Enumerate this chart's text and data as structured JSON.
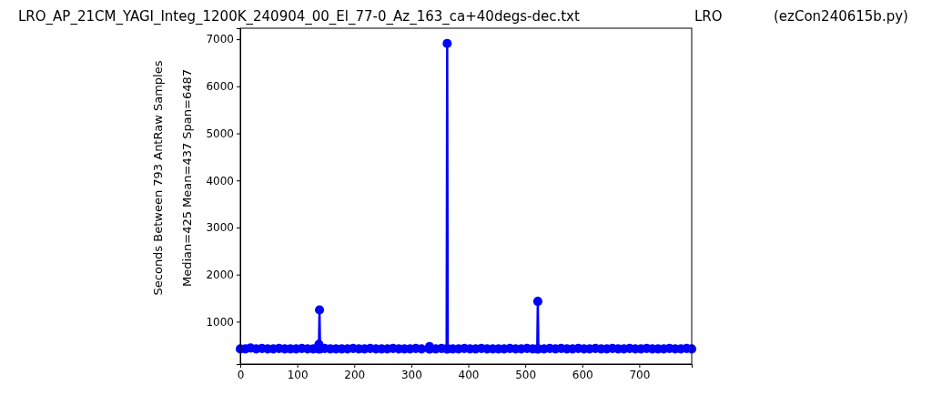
{
  "chart_data": {
    "type": "line",
    "title": "LRO_AP_21CM_YAGI_Integ_1200K_240904_00_El_77-0_Az_163_ca+40degs-dec.txt",
    "annotations": [
      "LRO",
      "(ezCon240615b.py)"
    ],
    "ylabel": "Seconds Between 793 AntRaw Samples\nMedian=425  Mean=437  Span=6487",
    "x": [
      0,
      9,
      18,
      28,
      38,
      48,
      58,
      68,
      78,
      88,
      98,
      108,
      118,
      128,
      137,
      138,
      139,
      140,
      148,
      158,
      168,
      178,
      188,
      198,
      208,
      218,
      228,
      238,
      248,
      258,
      268,
      278,
      288,
      298,
      308,
      318,
      331,
      332,
      333,
      343,
      353,
      362,
      363,
      364,
      373,
      383,
      393,
      403,
      413,
      423,
      433,
      443,
      453,
      463,
      473,
      483,
      493,
      503,
      513,
      521,
      522,
      523,
      533,
      543,
      553,
      563,
      573,
      583,
      593,
      603,
      613,
      623,
      633,
      643,
      653,
      663,
      673,
      683,
      693,
      703,
      713,
      723,
      733,
      743,
      753,
      763,
      773,
      783,
      792
    ],
    "series": [
      {
        "color": "#0000ff",
        "values": [
          420,
          420,
          440,
          420,
          430,
          420,
          420,
          430,
          420,
          420,
          420,
          430,
          420,
          420,
          420,
          520,
          1250,
          420,
          430,
          420,
          420,
          420,
          420,
          430,
          420,
          420,
          430,
          420,
          420,
          420,
          430,
          420,
          420,
          420,
          430,
          420,
          420,
          470,
          420,
          420,
          430,
          420,
          6910,
          420,
          420,
          420,
          430,
          420,
          420,
          430,
          420,
          420,
          420,
          420,
          430,
          420,
          420,
          430,
          420,
          420,
          1430,
          420,
          420,
          430,
          420,
          430,
          420,
          420,
          430,
          420,
          420,
          430,
          420,
          420,
          430,
          420,
          420,
          430,
          420,
          420,
          430,
          420,
          420,
          420,
          430,
          420,
          420,
          430,
          420
        ]
      }
    ],
    "xlim": [
      0,
      792
    ],
    "xticks": [
      0,
      100,
      200,
      300,
      400,
      500,
      600,
      700
    ],
    "ylim": [
      99,
      7234
    ],
    "yticks": [
      1000,
      2000,
      3000,
      4000,
      5000,
      6000,
      7000
    ],
    "marker": "circle",
    "line_style": "solid"
  }
}
